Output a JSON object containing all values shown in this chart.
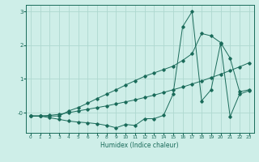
{
  "xlabel": "Humidex (Indice chaleur)",
  "x": [
    0,
    1,
    2,
    3,
    4,
    5,
    6,
    7,
    8,
    9,
    10,
    11,
    12,
    13,
    14,
    15,
    16,
    17,
    18,
    19,
    20,
    21,
    22,
    23
  ],
  "line1": [
    -0.1,
    -0.1,
    -0.15,
    -0.2,
    -0.25,
    -0.28,
    -0.3,
    -0.33,
    -0.38,
    -0.45,
    -0.35,
    -0.38,
    -0.18,
    -0.18,
    -0.08,
    0.55,
    2.55,
    3.0,
    0.35,
    0.68,
    2.05,
    -0.12,
    0.55,
    0.65
  ],
  "line2": [
    -0.1,
    -0.1,
    -0.1,
    -0.1,
    0.05,
    0.15,
    0.28,
    0.42,
    0.55,
    0.68,
    0.82,
    0.95,
    1.08,
    1.18,
    1.28,
    1.38,
    1.55,
    1.75,
    2.35,
    2.28,
    2.08,
    1.62,
    0.62,
    0.68
  ],
  "line3": [
    -0.1,
    -0.1,
    -0.08,
    -0.05,
    0.0,
    0.05,
    0.1,
    0.15,
    0.2,
    0.26,
    0.32,
    0.38,
    0.45,
    0.52,
    0.6,
    0.68,
    0.76,
    0.85,
    0.94,
    1.04,
    1.14,
    1.25,
    1.36,
    1.48
  ],
  "color": "#1a6b5a",
  "bg_color": "#ceeee8",
  "grid_color": "#aed8d0",
  "ylim": [
    -0.6,
    3.2
  ],
  "xlim": [
    -0.5,
    23.5
  ],
  "yticks": [
    0,
    1,
    2,
    3
  ]
}
